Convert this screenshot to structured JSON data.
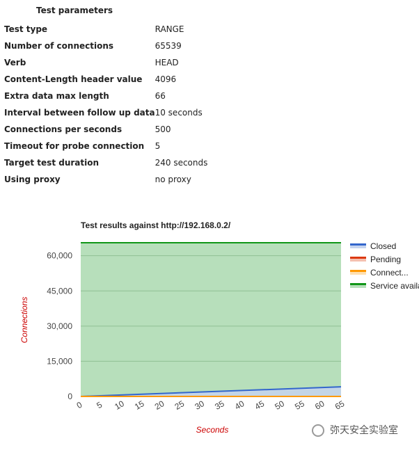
{
  "params": {
    "title": "Test parameters",
    "rows": [
      {
        "key": "Test type",
        "value": "RANGE"
      },
      {
        "key": "Number of connections",
        "value": "65539"
      },
      {
        "key": "Verb",
        "value": "HEAD"
      },
      {
        "key": "Content-Length header value",
        "value": "4096"
      },
      {
        "key": "Extra data max length",
        "value": "66"
      },
      {
        "key": "Interval between follow up data",
        "value": "10 seconds"
      },
      {
        "key": "Connections per seconds",
        "value": "500"
      },
      {
        "key": "Timeout for probe connection",
        "value": "5"
      },
      {
        "key": "Target test duration",
        "value": "240 seconds"
      },
      {
        "key": "Using proxy",
        "value": "no proxy"
      }
    ]
  },
  "chart_data": {
    "type": "area",
    "title": "Test results against http://192.168.0.2/",
    "xlabel": "Seconds",
    "ylabel": "Connections",
    "xlim": [
      0,
      65
    ],
    "ylim": [
      0,
      65539
    ],
    "x_ticks": [
      0,
      5,
      10,
      15,
      20,
      25,
      30,
      35,
      40,
      45,
      50,
      55,
      60,
      65
    ],
    "y_ticks": [
      0,
      15000,
      30000,
      45000,
      60000
    ],
    "y_tick_labels": [
      "0",
      "15,000",
      "30,000",
      "45,000",
      "60,000"
    ],
    "x": [
      0,
      65
    ],
    "series": [
      {
        "name": "Closed",
        "values": [
          0,
          4100
        ],
        "color": "#3366cc",
        "fill": "#c6d4ef"
      },
      {
        "name": "Pending",
        "values": [
          0,
          0
        ],
        "color": "#dc3912",
        "fill": "#f5c0b0"
      },
      {
        "name": "Connect...",
        "values": [
          0,
          0
        ],
        "color": "#ff9900",
        "fill": "#ffe0b0"
      },
      {
        "name": "Service available",
        "values": [
          65539,
          65539
        ],
        "color": "#109618",
        "fill": "#b7dfbb"
      }
    ],
    "grid": true,
    "legend_position": "right",
    "label_color": "#cc0000"
  },
  "watermark": {
    "text": "弥天安全实验室",
    "icon": "wechat-icon"
  }
}
